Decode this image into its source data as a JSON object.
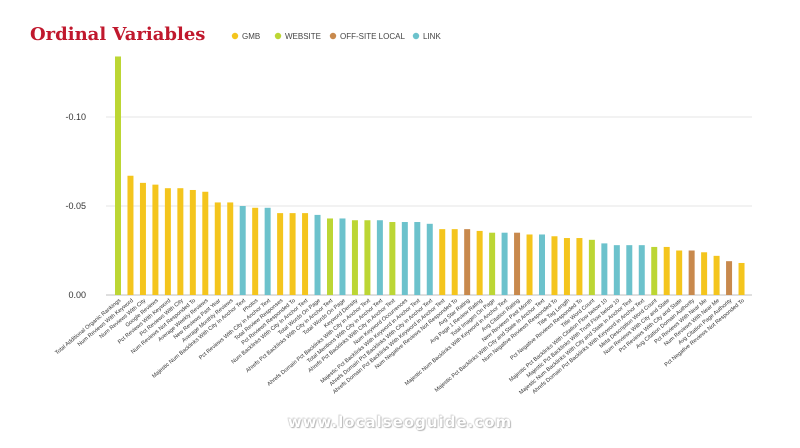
{
  "chart_data": {
    "type": "bar",
    "title": "Ordinal Variables",
    "legend_position": "top-right",
    "legend": [
      {
        "key": "GMB",
        "label": "GMB",
        "color": "#f4c51d"
      },
      {
        "key": "WEBSITE",
        "label": "WEBSITE",
        "color": "#bcd634"
      },
      {
        "key": "OFFSITE",
        "label": "OFF-SITE LOCAL",
        "color": "#c8894d"
      },
      {
        "key": "LINK",
        "label": "LINK",
        "color": "#6cc2cc"
      }
    ],
    "y_ticks": [
      "-0.10",
      "-0.05",
      "0.00"
    ],
    "y_tick_values": [
      -0.1,
      -0.05,
      0.0
    ],
    "ylim": [
      0.0,
      -0.135
    ],
    "y_inverted": true,
    "grid": "horizontal",
    "categories": [
      "Total Additional Organic Rankings",
      "Num Reviews With Keyword",
      "Num Reviews With City",
      "Google Reviews",
      "Pct Reviews With Keyword",
      "Pct Reviews With City",
      "Num Reviews Not Responded To",
      "Average Weekly Reviews",
      "New Reviews Past Year",
      "Average Monthly Reviews",
      "Majestic Num Backlinks With City In Anchor Text",
      "Photos",
      "Pct Reviews With City in Anchor Text",
      "Total Review Responses",
      "Pct Reviews Responded To",
      "Num Backlinks With City In Anchor Text",
      "Total Words On Page",
      "Ahrefs Pct Backlinks With City in Anchor Text",
      "Total Words On Page",
      "Keyword Density",
      "Ahrefs Domain Pct Backlinks With City in Anchor Text",
      "Total Mentions With City in Anchor Text",
      "Ahrefs Pct Backlinks With City in Anchor Text",
      "Num Keyword Occurrences",
      "Majestic Pct Backlinks With Keyword in Anchor Text",
      "Ahrefs Domain Pct Backlinks With City in Anchor Text",
      "Ahrefs Domain Pct Backlinks With Keyword in Anchor Text",
      "Num Negative Reviews Not Responded To",
      "Avg Star Rating",
      "Avg Page 1 Review Rating",
      "Total Images On Page",
      "Majestic Num Backlinks With Keyword in Anchor Text",
      "Avg Citation Rating",
      "New Reviews Past Month",
      "Majestic Pct Backlinks With City and State In Anchor Text",
      "Num Negative Reviews Responded To",
      "Title Tag Length",
      "Pct Negative Reviews Responded To",
      "Title Word Count",
      "Majestic Pct Backlinks With Citation Flow below 10",
      "Majestic Pct Backlinks With Trust Flow below 10",
      "Majestic Num Backlinks With City and State In Anchor Text",
      "Ahrefs Domain Pct Backlinks With Keyword in Anchor Text",
      "Meta Description Word Count",
      "Num Reviews With City and State",
      "Pct Reviews With City and State",
      "Avg Citation Domain Authority",
      "Pct Reviews With Near Me",
      "Num Reviews With Near Me",
      "Avg Citation Page Authority",
      "Pct Negative Reviews Not Responded To"
    ],
    "groups": [
      "WEBSITE",
      "GMB",
      "GMB",
      "GMB",
      "GMB",
      "GMB",
      "GMB",
      "GMB",
      "GMB",
      "GMB",
      "LINK",
      "GMB",
      "LINK",
      "GMB",
      "GMB",
      "GMB",
      "LINK",
      "WEBSITE",
      "LINK",
      "WEBSITE",
      "WEBSITE",
      "LINK",
      "WEBSITE",
      "LINK",
      "LINK",
      "LINK",
      "GMB",
      "GMB",
      "OFFSITE",
      "GMB",
      "WEBSITE",
      "LINK",
      "OFFSITE",
      "GMB",
      "LINK",
      "GMB",
      "GMB",
      "GMB",
      "WEBSITE",
      "LINK",
      "LINK",
      "LINK",
      "LINK",
      "WEBSITE",
      "GMB",
      "GMB",
      "OFFSITE",
      "GMB",
      "GMB",
      "OFFSITE",
      "GMB"
    ],
    "values": [
      -0.134,
      -0.067,
      -0.063,
      -0.062,
      -0.06,
      -0.06,
      -0.059,
      -0.058,
      -0.052,
      -0.052,
      -0.05,
      -0.049,
      -0.049,
      -0.046,
      -0.046,
      -0.046,
      -0.045,
      -0.043,
      -0.043,
      -0.042,
      -0.042,
      -0.042,
      -0.041,
      -0.041,
      -0.041,
      -0.04,
      -0.037,
      -0.037,
      -0.037,
      -0.036,
      -0.035,
      -0.035,
      -0.035,
      -0.034,
      -0.034,
      -0.033,
      -0.032,
      -0.032,
      -0.031,
      -0.029,
      -0.028,
      -0.028,
      -0.028,
      -0.027,
      -0.027,
      -0.025,
      -0.025,
      -0.024,
      -0.022,
      -0.019,
      -0.018
    ]
  },
  "footer": {
    "url": "www.localseoguide.com"
  }
}
